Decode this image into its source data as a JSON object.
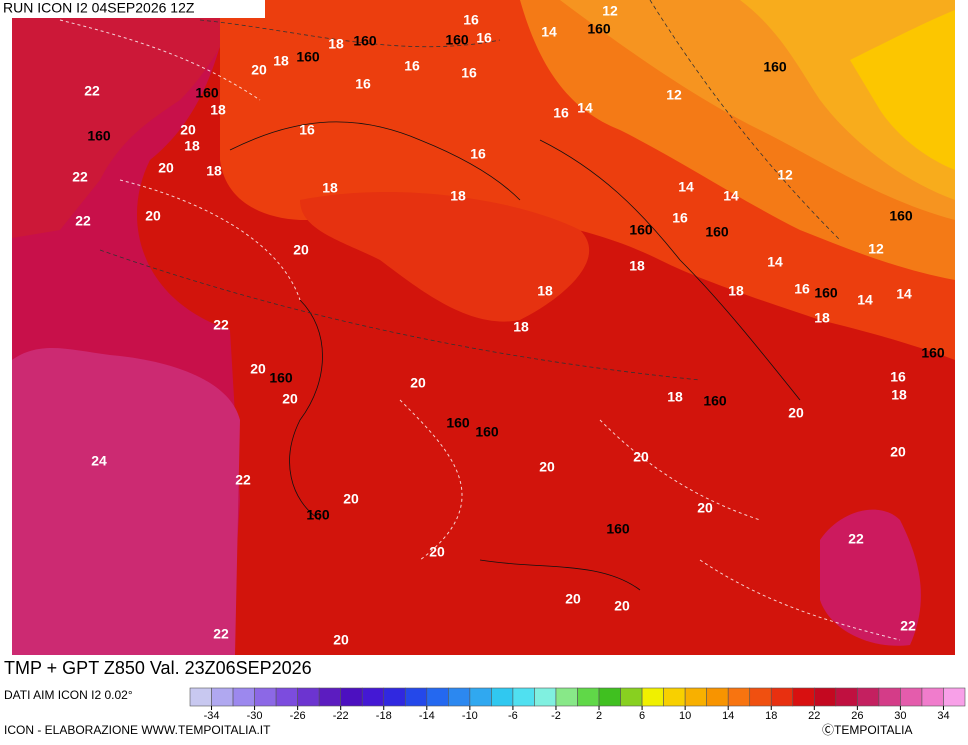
{
  "header": {
    "run": "RUN ICON I2 04SEP2026 12Z",
    "field": "TMP + GPT Z850 Val. 23Z06SEP2026"
  },
  "footer": {
    "source": "DATI AIM ICON I2 0.02°",
    "credit": "ICON - ELABORAZIONE WWW.TEMPOITALIA.IT",
    "copyright": "ⒸTEMPOITALIA"
  },
  "map_labels": [
    "16",
    "12",
    "18",
    "160",
    "160",
    "16",
    "14",
    "160",
    "20",
    "18",
    "160",
    "16",
    "16",
    "160",
    "22",
    "160",
    "16",
    "12",
    "18",
    "16",
    "14",
    "160",
    "20",
    "18",
    "16",
    "16",
    "20",
    "18",
    "22",
    "12",
    "14",
    "14",
    "18",
    "18",
    "20",
    "22",
    "16",
    "160",
    "160",
    "160",
    "12",
    "20",
    "18",
    "14",
    "18",
    "18",
    "16",
    "160",
    "14",
    "14",
    "22",
    "18",
    "18",
    "160",
    "20",
    "160",
    "20",
    "16",
    "18",
    "20",
    "18",
    "160",
    "20",
    "160",
    "160",
    "20",
    "24",
    "20",
    "20",
    "22",
    "20",
    "160",
    "20",
    "160",
    "22",
    "20",
    "20",
    "20",
    "22",
    "20",
    "22"
  ],
  "colorbar": {
    "range": [
      -36,
      36
    ],
    "ticks": [
      -34,
      -30,
      -26,
      -22,
      -18,
      -14,
      -10,
      -6,
      -2,
      2,
      6,
      10,
      14,
      18,
      22,
      26,
      30,
      34
    ],
    "colors": [
      "#c8c8f0",
      "#b0a8f0",
      "#9c88ee",
      "#8c68e6",
      "#7c4cde",
      "#6c34d0",
      "#5c1cc0",
      "#4c10c0",
      "#4418d4",
      "#3028e0",
      "#2448ea",
      "#2468f0",
      "#2c88f0",
      "#30a8f0",
      "#30c8f0",
      "#50e0f0",
      "#80f0e0",
      "#88e888",
      "#60d848",
      "#40c020",
      "#88d020",
      "#f0f000",
      "#f8d000",
      "#f8b000",
      "#f89400",
      "#f87410",
      "#f05010",
      "#e83010",
      "#d81010",
      "#c40820",
      "#c01040",
      "#c42060",
      "#d43c88",
      "#e45cac",
      "#f07ccc",
      "#f8a0e8"
    ]
  }
}
